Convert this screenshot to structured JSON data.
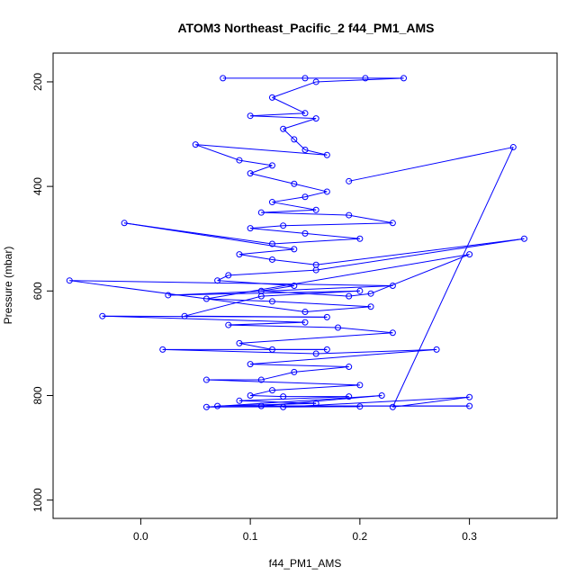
{
  "chart_data": {
    "type": "scatter",
    "title": "ATOM3 Northeast_Pacific_2 f44_PM1_AMS",
    "xlabel": "f44_PM1_AMS",
    "ylabel": "Pressure (mbar)",
    "xlim": [
      -0.08,
      0.38
    ],
    "ylim": [
      1035,
      145
    ],
    "y_reversed": true,
    "x_ticks": [
      0.0,
      0.1,
      0.2,
      0.3
    ],
    "x_tick_labels": [
      "0.0",
      "0.1",
      "0.2",
      "0.3"
    ],
    "y_ticks": [
      200,
      400,
      600,
      800,
      1000
    ],
    "y_tick_labels": [
      "200",
      "400",
      "600",
      "800",
      "1000"
    ],
    "marker": "open-circle",
    "connected_with_lines": true,
    "grid": false,
    "color": "#0000ff",
    "series": [
      {
        "x": [
          0.075,
          0.15,
          0.205,
          0.24,
          0.16,
          0.12,
          0.15,
          0.1,
          0.16,
          0.13,
          0.14,
          0.15,
          0.17,
          0.05,
          0.09,
          0.12,
          0.1,
          0.14,
          0.17,
          0.15,
          0.12,
          0.16,
          0.11,
          0.19,
          0.23,
          0.13,
          0.1,
          0.15,
          0.2,
          0.12,
          -0.015,
          0.14,
          0.09,
          0.12,
          0.16,
          0.35,
          0.16,
          0.08,
          0.07,
          0.14,
          0.11,
          0.19,
          0.21,
          0.3,
          0.06,
          0.12,
          0.21,
          0.15,
          -0.065,
          0.23,
          0.025,
          0.2,
          0.11,
          0.04,
          0.17,
          -0.035,
          0.15,
          0.08,
          0.18,
          0.23,
          0.09,
          0.12,
          0.17,
          0.02,
          0.16,
          0.27,
          0.1,
          0.19,
          0.14,
          0.11,
          0.06,
          0.2,
          0.12,
          0.1,
          0.13,
          0.19,
          0.09,
          0.16,
          0.07,
          0.3,
          0.11,
          0.22,
          0.06,
          0.2,
          0.13,
          0.3,
          0.23,
          0.34,
          0.19
        ],
        "y": [
          193,
          193,
          193,
          193,
          200,
          230,
          260,
          265,
          270,
          290,
          310,
          330,
          340,
          320,
          350,
          360,
          375,
          395,
          410,
          420,
          430,
          445,
          450,
          455,
          470,
          475,
          480,
          490,
          500,
          510,
          470,
          520,
          530,
          540,
          550,
          500,
          560,
          570,
          580,
          590,
          600,
          610,
          605,
          530,
          615,
          620,
          630,
          640,
          580,
          590,
          608,
          600,
          610,
          648,
          650,
          648,
          660,
          665,
          670,
          680,
          700,
          712,
          712,
          712,
          720,
          712,
          740,
          745,
          755,
          770,
          770,
          780,
          790,
          800,
          802,
          802,
          810,
          815,
          820,
          820,
          820,
          800,
          822,
          821,
          822,
          803,
          822,
          325,
          390
        ]
      }
    ]
  }
}
